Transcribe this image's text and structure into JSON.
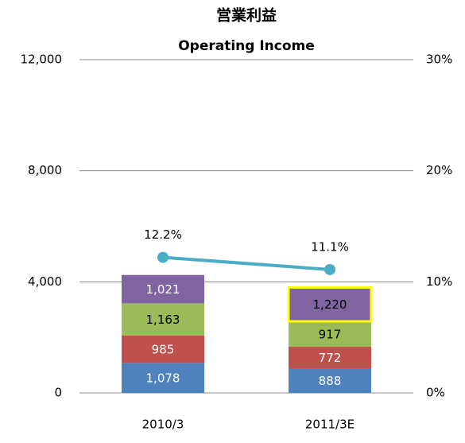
{
  "chart_data": {
    "type": "bar",
    "title": "営業利益",
    "subtitle": "Operating Income",
    "categories": [
      "2010/3",
      "2011/3E"
    ],
    "stacked": true,
    "series": [
      {
        "color": "#4f81bd",
        "values": [
          1078,
          888
        ],
        "value_labels": [
          "1,078",
          "888"
        ]
      },
      {
        "color": "#c0504d",
        "values": [
          985,
          772
        ],
        "value_labels": [
          "985",
          "772"
        ]
      },
      {
        "color": "#9bbb59",
        "values": [
          1163,
          917
        ],
        "value_labels": [
          "1,163",
          "917"
        ]
      },
      {
        "color": "#8064a2",
        "values": [
          1021,
          1220
        ],
        "value_labels": [
          "1,021",
          "1,220"
        ],
        "highlight_index": 1,
        "highlight_color": "#ffff00"
      },
      {
        "type": "line",
        "axis": "y2",
        "color": "#4bacc6",
        "values": [
          12.2,
          11.1
        ],
        "value_labels": [
          "12.2%",
          "11.1%"
        ]
      }
    ],
    "ylim": [
      0,
      12000
    ],
    "yticks": [
      0,
      {
        "value": 4000,
        "label": "4,000"
      },
      {
        "value": 8000,
        "label": "8,000"
      },
      {
        "value": 12000,
        "label": "12,000"
      }
    ],
    "y2lim": [
      0,
      30
    ],
    "y2ticks": [
      {
        "value": 0,
        "label": "0%"
      },
      {
        "value": 10,
        "label": "10%"
      },
      {
        "value": 20,
        "label": "20%"
      },
      {
        "value": 30,
        "label": "30%"
      }
    ],
    "grid": true
  }
}
